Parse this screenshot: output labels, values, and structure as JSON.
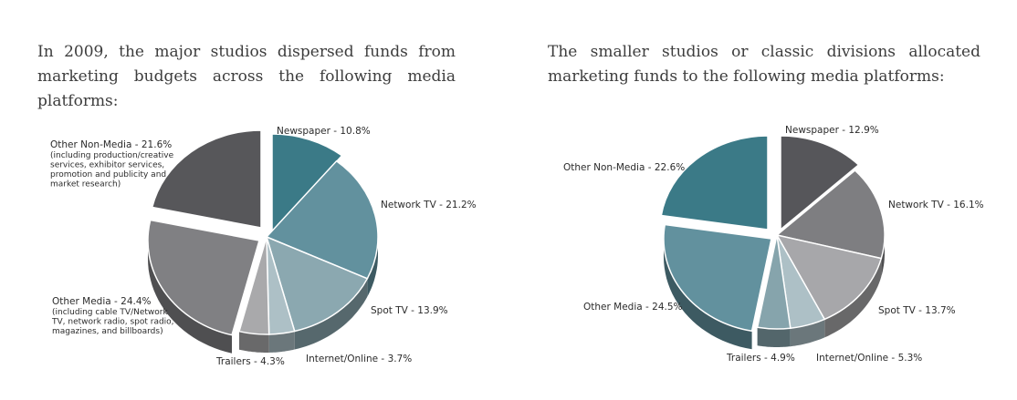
{
  "headings": {
    "left": "In 2009, the major studios dispersed funds from marketing budgets across the following media platforms:",
    "right": "The smaller studios or classic divisions allocated marketing funds to the following media platforms:"
  },
  "chart_data": [
    {
      "type": "pie",
      "title": "",
      "slices": [
        {
          "name": "Newspaper",
          "label": "Newspaper - 10.8%",
          "value": 10.8,
          "color": "#3b7a87",
          "note": []
        },
        {
          "name": "Network TV",
          "label": "Network TV - 21.2%",
          "value": 21.2,
          "color": "#62919e",
          "note": []
        },
        {
          "name": "Spot TV",
          "label": "Spot TV - 13.9%",
          "value": 13.9,
          "color": "#8ba8b0",
          "note": []
        },
        {
          "name": "Internet/Online",
          "label": "Internet/Online - 3.7%",
          "value": 3.7,
          "color": "#adc0c6",
          "note": []
        },
        {
          "name": "Trailers",
          "label": "Trailers - 4.3%",
          "value": 4.3,
          "color": "#a9a9ab",
          "note": []
        },
        {
          "name": "Other Media",
          "label": "Other Media - 24.4%",
          "value": 24.4,
          "color": "#808083",
          "note": [
            "(including cable TV/Network",
            "TV, network radio, spot radio,",
            "magazines, and billboards)"
          ]
        },
        {
          "name": "Other Non-Media",
          "label": "Other Non-Media - 21.6%",
          "value": 21.6,
          "color": "#57575a",
          "note": [
            "(including production/creative",
            "services, exhibitor services,",
            "promotion and publicity and",
            "market research)"
          ]
        }
      ]
    },
    {
      "type": "pie",
      "title": "",
      "slices": [
        {
          "name": "Newspaper",
          "label": "Newspaper - 12.9%",
          "value": 12.9,
          "color": "#56565a",
          "note": []
        },
        {
          "name": "Network TV",
          "label": "Network TV - 16.1%",
          "value": 16.1,
          "color": "#7e7e81",
          "note": []
        },
        {
          "name": "Spot TV",
          "label": "Spot TV - 13.7%",
          "value": 13.7,
          "color": "#a7a7aa",
          "note": []
        },
        {
          "name": "Internet/Online",
          "label": "Internet/Online - 5.3%",
          "value": 5.3,
          "color": "#adc0c6",
          "note": []
        },
        {
          "name": "Trailers",
          "label": "Trailers - 4.9%",
          "value": 4.9,
          "color": "#86a4ac",
          "note": []
        },
        {
          "name": "Other Media",
          "label": "Other Media - 24.5%",
          "value": 24.5,
          "color": "#62919e",
          "note": []
        },
        {
          "name": "Other Non-Media",
          "label": "Other Non-Media - 22.6%",
          "value": 22.6,
          "color": "#3b7a87",
          "note": []
        }
      ]
    }
  ]
}
